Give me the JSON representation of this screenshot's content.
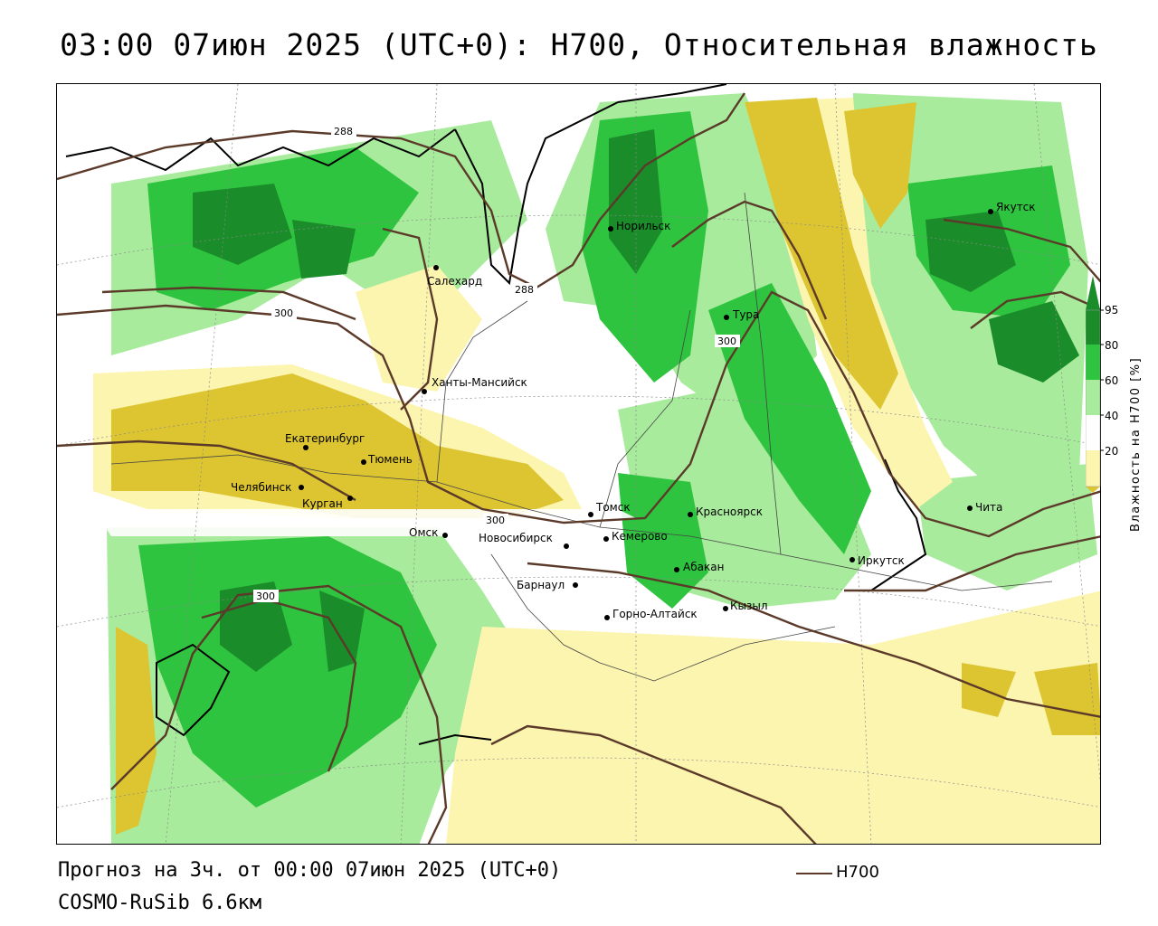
{
  "title": "03:00 07июн 2025 (UTC+0): H700, Относительная влажность",
  "footer": {
    "forecast": "Прогноз на 3ч. от 00:00 07июн 2025 (UTC+0)",
    "model": "COSMO-RuSib 6.6км"
  },
  "legend": {
    "line_label": "H700"
  },
  "colorbar": {
    "title": "Влажность на H700 [%]",
    "ticks": [
      "95",
      "80",
      "60",
      "40",
      "20"
    ],
    "colors": {
      "very_humid": "#1a8c2a",
      "humid": "#2fc43f",
      "moist": "#a8eb9c",
      "neutral": "#ffffff",
      "dry": "#fcf5b0",
      "very_dry": "#ddc531"
    }
  },
  "contour_color": "#5b3a2a",
  "contours": [
    {
      "label": "288"
    },
    {
      "label": "288"
    },
    {
      "label": "300"
    },
    {
      "label": "300"
    },
    {
      "label": "300"
    },
    {
      "label": "300"
    }
  ],
  "cities": [
    {
      "name": "Якутск"
    },
    {
      "name": "Норильск"
    },
    {
      "name": "Салехард"
    },
    {
      "name": "Тура"
    },
    {
      "name": "Ханты-Мансийск"
    },
    {
      "name": "Екатеринбург"
    },
    {
      "name": "Тюмень"
    },
    {
      "name": "Челябинск"
    },
    {
      "name": "Курган"
    },
    {
      "name": "Омск"
    },
    {
      "name": "Новосибирск"
    },
    {
      "name": "Томск"
    },
    {
      "name": "Кемерово"
    },
    {
      "name": "Красноярск"
    },
    {
      "name": "Абакан"
    },
    {
      "name": "Барнаул"
    },
    {
      "name": "Горно-Алтайск"
    },
    {
      "name": "Кызыл"
    },
    {
      "name": "Иркутск"
    },
    {
      "name": "Чита"
    }
  ]
}
